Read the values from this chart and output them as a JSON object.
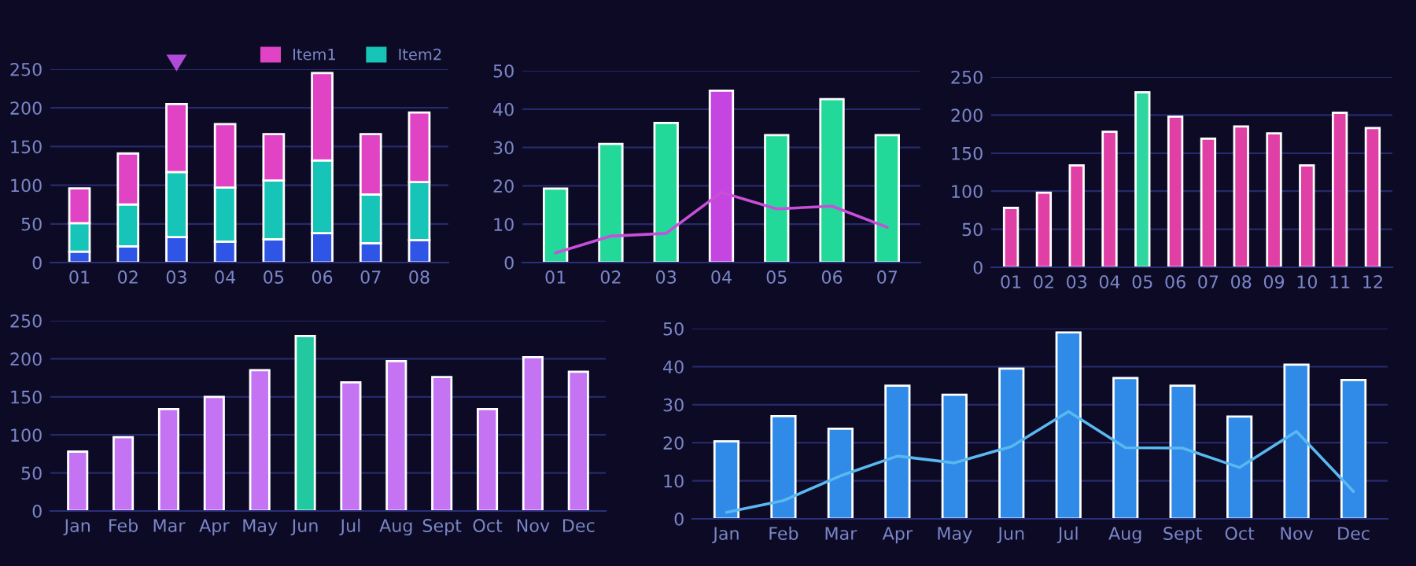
{
  "chart_data": [
    {
      "type": "bar",
      "stacked": true,
      "categories": [
        "01",
        "02",
        "03",
        "04",
        "05",
        "06",
        "07",
        "08"
      ],
      "series": [
        {
          "color": "#2f55e6",
          "values": [
            14,
            21,
            33,
            27,
            30,
            38,
            25,
            29
          ]
        },
        {
          "name": "Item2",
          "color": "#16c4b8",
          "values": [
            37,
            54,
            84,
            70,
            76,
            94,
            63,
            75
          ]
        },
        {
          "name": "Item1",
          "color": "#e043c4",
          "values": [
            45,
            66,
            88,
            82,
            60,
            113,
            78,
            90
          ]
        }
      ],
      "ylim": [
        0,
        250
      ],
      "yticks": [
        0,
        50,
        100,
        150,
        200,
        250
      ],
      "grid": "y",
      "legend": "top right"
    },
    {
      "type": "bar",
      "categories": [
        "01",
        "02",
        "03",
        "04",
        "05",
        "06",
        "07"
      ],
      "series": [
        {
          "colors": [
            "#22d99a",
            "#22d99a",
            "#22d99a",
            "#c445e0",
            "#22d99a",
            "#22d99a",
            "#22d99a"
          ],
          "values": [
            19.3,
            30.9,
            36.4,
            44.8,
            33.2,
            42.6,
            33.2
          ]
        },
        {
          "type": "line",
          "color": "#c84fd8",
          "values": [
            2.5,
            6.9,
            7.6,
            18.3,
            14,
            14.7,
            9.2
          ]
        }
      ],
      "ylim": [
        0,
        50
      ],
      "yticks": [
        0,
        10,
        20,
        30,
        40,
        50
      ],
      "grid": "y"
    },
    {
      "type": "bar",
      "categories": [
        "01",
        "02",
        "03",
        "04",
        "05",
        "06",
        "07",
        "08",
        "09",
        "10",
        "11",
        "12"
      ],
      "series": [
        {
          "colors": [
            "#e03fa6",
            "#e03fa6",
            "#e03fa6",
            "#e03fa6",
            "#2fd6a0",
            "#e03fa6",
            "#e03fa6",
            "#e03fa6",
            "#e03fa6",
            "#e03fa6",
            "#e03fa6",
            "#e03fa6"
          ],
          "values": [
            78,
            98,
            134,
            178,
            230,
            198,
            169,
            185,
            176,
            134,
            203,
            183
          ]
        }
      ],
      "ylim": [
        0,
        250
      ],
      "yticks": [
        0,
        50,
        100,
        150,
        200,
        250
      ],
      "grid": "y"
    },
    {
      "type": "bar",
      "categories": [
        "Jan",
        "Feb",
        "Mar",
        "Apr",
        "May",
        "Jun",
        "Jul",
        "Aug",
        "Sept",
        "Oct",
        "Nov",
        "Dec"
      ],
      "series": [
        {
          "colors": [
            "#c474f2",
            "#c474f2",
            "#c474f2",
            "#c474f2",
            "#c474f2",
            "#22c9a0",
            "#c474f2",
            "#c474f2",
            "#c474f2",
            "#c474f2",
            "#c474f2",
            "#c474f2"
          ],
          "values": [
            78,
            97,
            134,
            150,
            185,
            230,
            169,
            197,
            176,
            134,
            202,
            183
          ]
        }
      ],
      "ylim": [
        0,
        250
      ],
      "yticks": [
        0,
        50,
        100,
        150,
        200,
        250
      ],
      "grid": "y"
    },
    {
      "type": "bar",
      "categories": [
        "Jan",
        "Feb",
        "Mar",
        "Apr",
        "May",
        "Jun",
        "Jul",
        "Aug",
        "Sept",
        "Oct",
        "Nov",
        "Dec"
      ],
      "series": [
        {
          "color": "#2f8ae8",
          "values": [
            20.4,
            27,
            23.7,
            35,
            32.6,
            39.5,
            49,
            37,
            35,
            26.9,
            40.5,
            36.5
          ]
        },
        {
          "type": "line",
          "color": "#5ab8f0",
          "values": [
            1.7,
            4.8,
            11.3,
            16.5,
            14.7,
            19,
            28.2,
            18.7,
            18.6,
            13.5,
            23,
            7.2
          ]
        }
      ],
      "ylim": [
        0,
        50
      ],
      "yticks": [
        0,
        10,
        20,
        30,
        40,
        50
      ],
      "grid": "y"
    }
  ]
}
